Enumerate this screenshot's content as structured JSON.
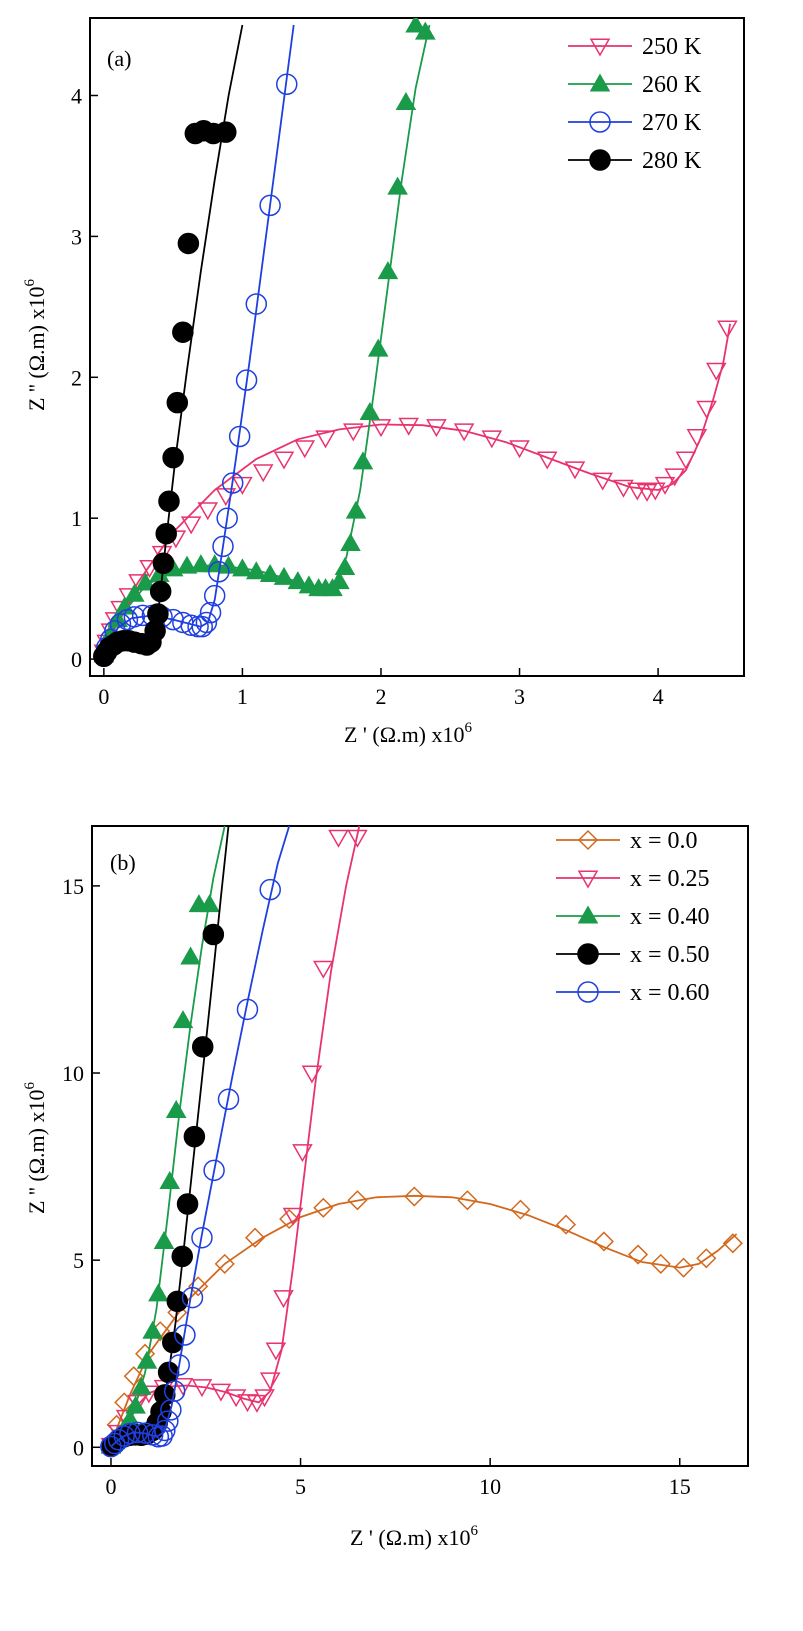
{
  "chart_data": [
    {
      "type": "scatter",
      "panel_label": "(a)",
      "xlabel": "Z ' (Ω.m) x10",
      "xlabel_sup": "6",
      "ylabel": "Z '' (Ω.m) x10",
      "ylabel_sup": "6",
      "xlim": [
        -0.1,
        4.62
      ],
      "ylim": [
        -0.12,
        4.55
      ],
      "xticks": [
        0,
        1,
        2,
        3,
        4
      ],
      "yticks": [
        0,
        1,
        2,
        3,
        4
      ],
      "grid": false,
      "legend_position": "top-right",
      "series": [
        {
          "name": "250 K",
          "marker": "triangle-down-open",
          "color": "#e8336e",
          "x": [
            0.0,
            0.02,
            0.05,
            0.08,
            0.12,
            0.18,
            0.25,
            0.33,
            0.42,
            0.52,
            0.63,
            0.75,
            0.88,
            1.0,
            1.15,
            1.3,
            1.45,
            1.6,
            1.8,
            2.0,
            2.2,
            2.4,
            2.6,
            2.8,
            3.0,
            3.2,
            3.4,
            3.6,
            3.75,
            3.85,
            3.92,
            3.98,
            4.05,
            4.12,
            4.2,
            4.28,
            4.35,
            4.42,
            4.5
          ],
          "y": [
            0.05,
            0.12,
            0.2,
            0.28,
            0.36,
            0.45,
            0.55,
            0.65,
            0.75,
            0.86,
            0.96,
            1.06,
            1.16,
            1.24,
            1.33,
            1.42,
            1.5,
            1.57,
            1.62,
            1.65,
            1.66,
            1.65,
            1.62,
            1.57,
            1.5,
            1.42,
            1.35,
            1.27,
            1.22,
            1.2,
            1.19,
            1.2,
            1.24,
            1.3,
            1.42,
            1.58,
            1.78,
            2.05,
            2.35
          ],
          "fit_x": [
            0.0,
            0.1,
            0.25,
            0.5,
            0.8,
            1.1,
            1.4,
            1.7,
            2.0,
            2.3,
            2.6,
            2.9,
            3.2,
            3.5,
            3.8,
            4.0,
            4.1,
            4.2,
            4.3,
            4.4,
            4.47,
            4.52
          ],
          "fit_y": [
            0.05,
            0.3,
            0.55,
            0.9,
            1.2,
            1.42,
            1.56,
            1.63,
            1.665,
            1.66,
            1.62,
            1.54,
            1.43,
            1.32,
            1.22,
            1.2,
            1.24,
            1.34,
            1.55,
            1.85,
            2.1,
            2.38
          ]
        },
        {
          "name": "260 K",
          "marker": "triangle-up-filled",
          "color": "#1a9b4a",
          "x": [
            0.0,
            0.02,
            0.05,
            0.1,
            0.15,
            0.22,
            0.3,
            0.4,
            0.5,
            0.6,
            0.7,
            0.8,
            0.9,
            1.0,
            1.1,
            1.2,
            1.3,
            1.4,
            1.48,
            1.55,
            1.6,
            1.65,
            1.7,
            1.74,
            1.78,
            1.82,
            1.87,
            1.92,
            1.98,
            2.05,
            2.12,
            2.18,
            2.25,
            2.32
          ],
          "y": [
            0.03,
            0.1,
            0.18,
            0.28,
            0.37,
            0.46,
            0.54,
            0.6,
            0.64,
            0.66,
            0.67,
            0.67,
            0.66,
            0.64,
            0.62,
            0.6,
            0.58,
            0.55,
            0.52,
            0.5,
            0.5,
            0.5,
            0.55,
            0.65,
            0.82,
            1.05,
            1.4,
            1.75,
            2.2,
            2.75,
            3.35,
            3.95,
            4.5,
            4.45
          ],
          "fit_x": [
            0.0,
            0.1,
            0.3,
            0.5,
            0.8,
            1.1,
            1.4,
            1.55,
            1.65,
            1.75,
            1.85,
            1.95,
            2.05,
            2.15,
            2.25,
            2.35
          ],
          "fit_y": [
            0.03,
            0.28,
            0.52,
            0.63,
            0.67,
            0.63,
            0.55,
            0.5,
            0.52,
            0.72,
            1.2,
            1.9,
            2.65,
            3.4,
            4.05,
            4.5
          ]
        },
        {
          "name": "270 K",
          "marker": "circle-open",
          "color": "#1f3fe0",
          "x": [
            0.0,
            0.02,
            0.05,
            0.08,
            0.12,
            0.17,
            0.22,
            0.28,
            0.35,
            0.42,
            0.5,
            0.57,
            0.63,
            0.68,
            0.71,
            0.74,
            0.77,
            0.8,
            0.83,
            0.86,
            0.89,
            0.93,
            0.98,
            1.03,
            1.1,
            1.2,
            1.32
          ],
          "y": [
            0.02,
            0.08,
            0.14,
            0.2,
            0.25,
            0.28,
            0.3,
            0.31,
            0.31,
            0.3,
            0.28,
            0.26,
            0.24,
            0.23,
            0.23,
            0.26,
            0.33,
            0.45,
            0.62,
            0.8,
            1.0,
            1.25,
            1.58,
            1.98,
            2.52,
            3.22,
            4.08
          ],
          "fit_x": [
            0.0,
            0.1,
            0.2,
            0.35,
            0.5,
            0.62,
            0.7,
            0.75,
            0.8,
            0.86,
            0.95,
            1.05,
            1.15,
            1.25,
            1.37
          ],
          "fit_y": [
            0.02,
            0.22,
            0.29,
            0.31,
            0.28,
            0.25,
            0.23,
            0.26,
            0.42,
            0.8,
            1.4,
            2.1,
            2.85,
            3.6,
            4.5
          ]
        },
        {
          "name": "280 K",
          "marker": "circle-filled",
          "color": "#000000",
          "x": [
            0.0,
            0.02,
            0.04,
            0.07,
            0.1,
            0.14,
            0.18,
            0.22,
            0.27,
            0.31,
            0.34,
            0.37,
            0.39,
            0.41,
            0.43,
            0.45,
            0.47,
            0.5,
            0.53,
            0.57,
            0.61,
            0.66,
            0.72,
            0.79,
            0.88
          ],
          "y": [
            0.02,
            0.05,
            0.08,
            0.1,
            0.12,
            0.13,
            0.13,
            0.12,
            0.11,
            0.1,
            0.12,
            0.2,
            0.32,
            0.48,
            0.68,
            0.89,
            1.12,
            1.43,
            1.82,
            2.32,
            2.95,
            3.73,
            3.75,
            3.73,
            3.74
          ],
          "fit_x": [
            0.0,
            0.1,
            0.2,
            0.3,
            0.35,
            0.4,
            0.45,
            0.52,
            0.6,
            0.7,
            0.8,
            0.9,
            1.0
          ],
          "fit_y": [
            0.02,
            0.12,
            0.13,
            0.1,
            0.14,
            0.4,
            0.85,
            1.45,
            2.05,
            2.75,
            3.4,
            4.0,
            4.5
          ]
        }
      ]
    },
    {
      "type": "scatter",
      "panel_label": "(b)",
      "xlabel": "Z ' (Ω.m) x10",
      "xlabel_sup": "6",
      "ylabel": "Z '' (Ω.m) x10",
      "ylabel_sup": "6",
      "xlim": [
        -0.5,
        16.8
      ],
      "ylim": [
        -0.5,
        16.6
      ],
      "xticks": [
        0,
        5,
        10,
        15
      ],
      "yticks": [
        0,
        5,
        10,
        15
      ],
      "grid": false,
      "legend_position": "top-right",
      "series": [
        {
          "name": "x = 0.0",
          "marker": "diamond-open",
          "color": "#d2691e",
          "x": [
            0.0,
            0.15,
            0.35,
            0.6,
            0.9,
            1.3,
            1.75,
            2.3,
            3.0,
            3.8,
            4.7,
            5.6,
            6.5,
            8.0,
            9.4,
            10.8,
            12.0,
            13.0,
            13.9,
            14.5,
            15.1,
            15.7,
            16.4
          ],
          "y": [
            0.1,
            0.6,
            1.2,
            1.9,
            2.5,
            3.1,
            3.6,
            4.3,
            4.9,
            5.6,
            6.1,
            6.4,
            6.6,
            6.7,
            6.6,
            6.35,
            5.95,
            5.5,
            5.15,
            4.9,
            4.8,
            5.05,
            5.45
          ],
          "fit_x": [
            0.0,
            0.5,
            1.0,
            2.0,
            3.0,
            4.0,
            5.0,
            6.0,
            7.0,
            8.0,
            9.0,
            10.0,
            11.0,
            12.0,
            13.0,
            14.0,
            15.0,
            15.5,
            16.0,
            16.5
          ],
          "fit_y": [
            0.1,
            1.4,
            2.5,
            3.9,
            4.9,
            5.6,
            6.15,
            6.5,
            6.68,
            6.72,
            6.68,
            6.5,
            6.2,
            5.8,
            5.35,
            4.95,
            4.8,
            4.9,
            5.25,
            5.7
          ]
        },
        {
          "name": "x = 0.25",
          "marker": "triangle-down-open",
          "color": "#e8336e",
          "x": [
            0.0,
            0.2,
            0.4,
            0.7,
            1.0,
            1.4,
            1.9,
            2.4,
            2.9,
            3.3,
            3.6,
            3.85,
            4.05,
            4.2,
            4.35,
            4.55,
            4.8,
            5.05,
            5.3,
            5.6,
            6.0,
            6.5
          ],
          "y": [
            0.05,
            0.4,
            0.8,
            1.2,
            1.45,
            1.6,
            1.65,
            1.62,
            1.5,
            1.35,
            1.22,
            1.2,
            1.35,
            1.8,
            2.6,
            4.0,
            6.2,
            7.9,
            10.0,
            12.8,
            16.3,
            16.3
          ],
          "fit_x": [
            0.0,
            0.5,
            1.0,
            1.5,
            2.0,
            2.5,
            3.0,
            3.5,
            3.9,
            4.2,
            4.5,
            4.8,
            5.1,
            5.4,
            5.8,
            6.2,
            6.55
          ],
          "fit_y": [
            0.05,
            0.9,
            1.45,
            1.62,
            1.65,
            1.6,
            1.48,
            1.3,
            1.2,
            1.5,
            2.6,
            4.8,
            7.3,
            9.8,
            12.7,
            15.0,
            16.6
          ]
        },
        {
          "name": "x = 0.40",
          "marker": "triangle-up-filled",
          "color": "#1a9b4a",
          "x": [
            0.0,
            0.1,
            0.2,
            0.35,
            0.5,
            0.65,
            0.8,
            0.95,
            1.1,
            1.25,
            1.4,
            1.55,
            1.72,
            1.9,
            2.1,
            2.32,
            2.6
          ],
          "y": [
            0.03,
            0.15,
            0.3,
            0.5,
            0.75,
            1.1,
            1.6,
            2.3,
            3.1,
            4.1,
            5.5,
            7.1,
            9.0,
            11.4,
            13.1,
            14.5,
            14.5
          ],
          "fit_x": [
            0.0,
            0.3,
            0.6,
            0.9,
            1.2,
            1.5,
            1.8,
            2.1,
            2.4,
            2.7,
            3.0
          ],
          "fit_y": [
            0.03,
            0.4,
            0.95,
            2.0,
            3.7,
            6.2,
            8.9,
            11.3,
            13.4,
            15.2,
            16.6
          ]
        },
        {
          "name": "x = 0.50",
          "marker": "circle-filled",
          "color": "#000000",
          "x": [
            0.0,
            0.1,
            0.2,
            0.35,
            0.5,
            0.65,
            0.8,
            0.95,
            1.1,
            1.22,
            1.32,
            1.42,
            1.52,
            1.63,
            1.75,
            1.88,
            2.02,
            2.2,
            2.42,
            2.7
          ],
          "y": [
            0.02,
            0.1,
            0.2,
            0.28,
            0.32,
            0.33,
            0.32,
            0.35,
            0.45,
            0.65,
            0.95,
            1.4,
            2.0,
            2.8,
            3.9,
            5.1,
            6.5,
            8.3,
            10.7,
            13.7
          ],
          "fit_x": [
            0.0,
            0.3,
            0.6,
            0.9,
            1.1,
            1.3,
            1.5,
            1.7,
            1.9,
            2.1,
            2.3,
            2.5,
            2.7,
            2.9,
            3.1
          ],
          "fit_y": [
            0.02,
            0.27,
            0.33,
            0.35,
            0.45,
            0.85,
            1.8,
            3.3,
            5.1,
            7.0,
            8.9,
            10.8,
            12.7,
            14.7,
            16.6
          ]
        },
        {
          "name": "x = 0.60",
          "marker": "circle-open",
          "color": "#1f3fe0",
          "x": [
            0.0,
            0.1,
            0.2,
            0.35,
            0.5,
            0.7,
            0.9,
            1.1,
            1.25,
            1.35,
            1.42,
            1.5,
            1.58,
            1.68,
            1.8,
            1.95,
            2.15,
            2.4,
            2.72,
            3.1,
            3.6,
            4.2
          ],
          "y": [
            0.02,
            0.1,
            0.2,
            0.3,
            0.37,
            0.4,
            0.38,
            0.33,
            0.28,
            0.3,
            0.45,
            0.7,
            1.0,
            1.5,
            2.2,
            3.0,
            4.0,
            5.6,
            7.4,
            9.3,
            11.7,
            14.9
          ],
          "fit_x": [
            0.0,
            0.3,
            0.6,
            0.9,
            1.2,
            1.4,
            1.6,
            1.8,
            2.1,
            2.4,
            2.8,
            3.2,
            3.6,
            4.0,
            4.4,
            4.7
          ],
          "fit_y": [
            0.02,
            0.28,
            0.4,
            0.37,
            0.28,
            0.4,
            1.1,
            2.2,
            4.0,
            5.7,
            7.8,
            9.9,
            11.9,
            13.8,
            15.6,
            16.6
          ]
        }
      ]
    }
  ]
}
